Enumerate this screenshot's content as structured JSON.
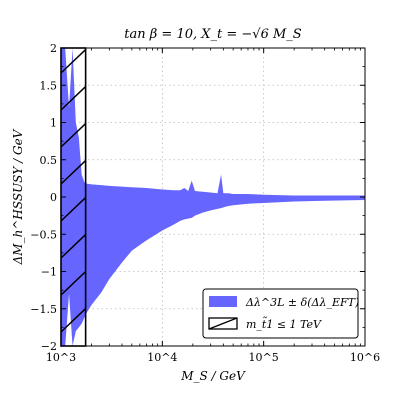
{
  "chart_data": {
    "type": "area",
    "title": "tan β = 10, X_t = −√6 M_S",
    "xlabel": "M_S / GeV",
    "ylabel": "ΔM_h^HSSUSY / GeV",
    "xscale": "log",
    "xlim": [
      1000,
      1000000
    ],
    "ylim": [
      -2,
      2
    ],
    "x_tick_labels": [
      "10^3",
      "10^4",
      "10^5",
      "10^6"
    ],
    "x_ticks": [
      1000,
      10000,
      100000,
      1000000
    ],
    "y_ticks": [
      -2,
      -1.5,
      -1,
      -0.5,
      0,
      0.5,
      1,
      1.5,
      2
    ],
    "y_tick_labels": [
      "−2",
      "−1.5",
      "−1",
      "−0.5",
      "0",
      "0.5",
      "1",
      "1.5",
      "2"
    ],
    "grid": true,
    "legend_position": "bottom-right",
    "band_color": "#6666ff",
    "series": [
      {
        "name": "Δλ^3L ± δ(Δλ_EFT)",
        "x": [
          1000,
          1100,
          1200,
          1300,
          1400,
          1500,
          1600,
          1700,
          1800,
          2000,
          2500,
          3000,
          4000,
          5000,
          7000,
          10000,
          13000,
          15000,
          16500,
          18000,
          19500,
          21000,
          25000,
          30000,
          35000,
          38000,
          40000,
          42000,
          45000,
          50000,
          70000,
          100000,
          200000,
          400000,
          1000000
        ],
        "upper": [
          2.0,
          2.0,
          1.2,
          2.0,
          1.0,
          0.8,
          0.3,
          0.2,
          0.18,
          0.17,
          0.16,
          0.15,
          0.14,
          0.13,
          0.12,
          0.1,
          0.09,
          0.09,
          0.12,
          0.08,
          0.22,
          0.08,
          0.07,
          0.06,
          0.05,
          0.3,
          0.05,
          0.05,
          0.05,
          0.04,
          0.04,
          0.03,
          0.02,
          0.02,
          0.02
        ],
        "lower": [
          -2.0,
          -2.0,
          -1.3,
          -2.0,
          -1.8,
          -1.75,
          -1.7,
          -1.62,
          -1.55,
          -1.45,
          -1.28,
          -1.1,
          -0.88,
          -0.72,
          -0.58,
          -0.45,
          -0.37,
          -0.32,
          -0.3,
          -0.29,
          -0.28,
          -0.25,
          -0.21,
          -0.18,
          -0.16,
          -0.15,
          -0.14,
          -0.13,
          -0.12,
          -0.11,
          -0.09,
          -0.08,
          -0.06,
          -0.05,
          -0.04
        ]
      }
    ],
    "hatched_region": {
      "name": "m_t̃1 ≤ 1 TeV",
      "x_range": [
        1000,
        1750
      ]
    }
  },
  "legend": {
    "band_label": "Δλ^3L ± δ(Δλ_EFT)",
    "hatch_label": "m_t̃1 ≤ 1 TeV"
  }
}
